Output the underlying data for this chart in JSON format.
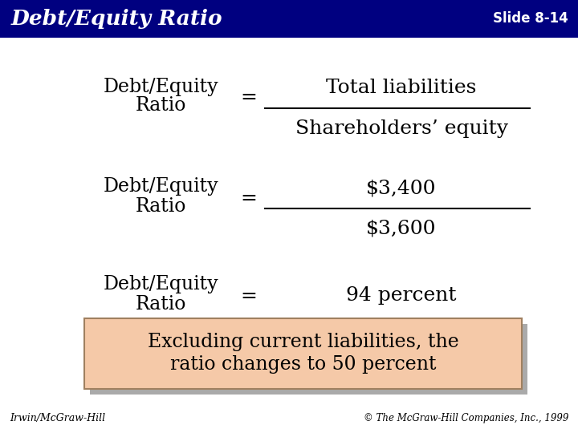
{
  "title": "Debt/Equity Ratio",
  "slide_num": "Slide 8-14",
  "header_bg": "#000080",
  "header_text_color": "#FFFFFF",
  "bg_color": "#FFFFFF",
  "body_text_color": "#000000",
  "row1_numerator": "Total liabilities",
  "row1_denominator": "Shareholders’ equity",
  "row2_numerator": "$3,400",
  "row2_denominator": "$3,600",
  "row3_result": "94 percent",
  "box_text1": "Excluding current liabilities, the",
  "box_text2": "ratio changes to 50 percent",
  "box_bg": "#F5C9A8",
  "box_border": "#A08060",
  "shadow_color": "#AAAAAA",
  "footer_left": "Irwin/McGraw-Hill",
  "footer_right": "© The McGraw-Hill Companies, Inc., 1999"
}
